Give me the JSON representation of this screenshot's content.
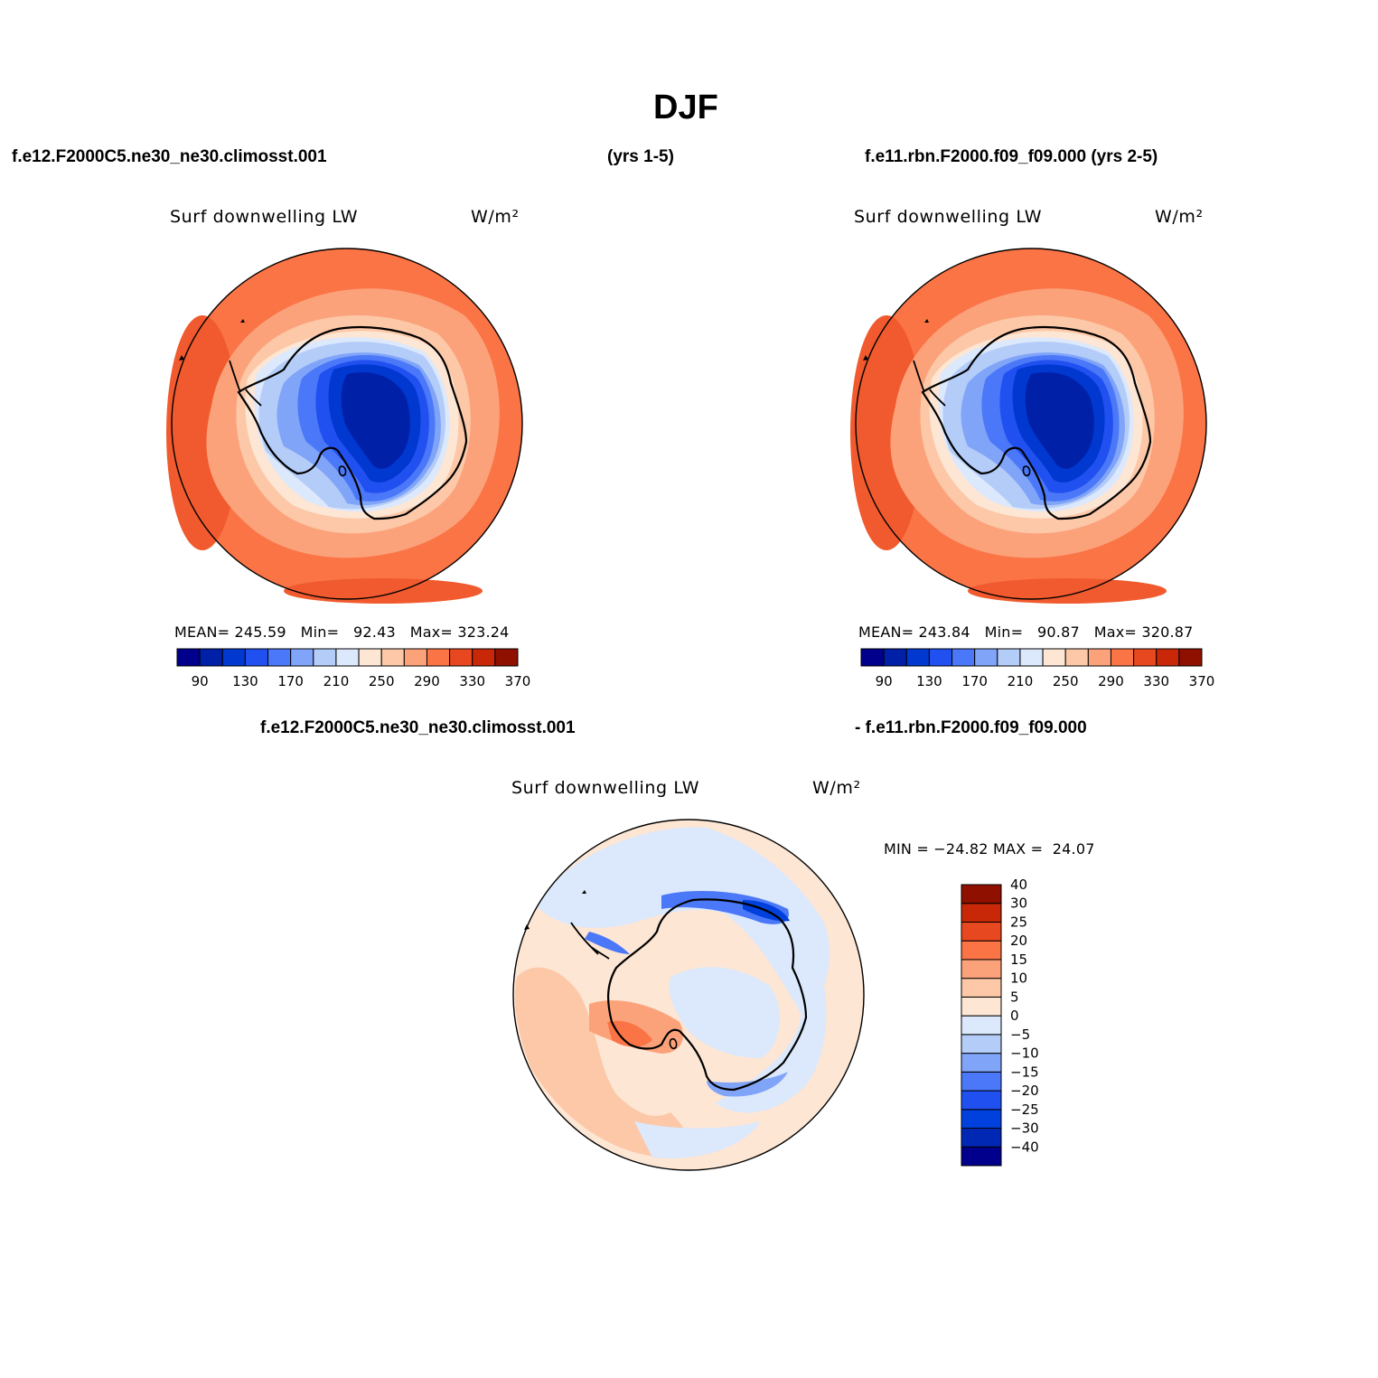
{
  "title": "DJF",
  "headers": {
    "case1": "f.e12.F2000C5.ne30_ne30.climosst.001",
    "case1_years": "(yrs 1-5)",
    "case2": "f.e11.rbn.F2000.f09_f09.000 (yrs 2-5)",
    "diff_left": "f.e12.F2000C5.ne30_ne30.climosst.001",
    "diff_right": "- f.e11.rbn.F2000.f09_f09.000"
  },
  "panels": [
    {
      "variable": "Surf downwelling LW",
      "units": "W/m²",
      "stats": {
        "mean_label": "MEAN=",
        "mean": "245.59",
        "min_label": "Min=",
        "min": "92.43",
        "max_label": "Max=",
        "max": "323.24"
      }
    },
    {
      "variable": "Surf downwelling LW",
      "units": "W/m²",
      "stats": {
        "mean_label": "MEAN=",
        "mean": "243.84",
        "min_label": "Min=",
        "min": "90.87",
        "max_label": "Max=",
        "max": "320.87"
      }
    },
    {
      "variable": "Surf downwelling LW",
      "units": "W/m²",
      "stats": {
        "min_label": "MIN =",
        "min": "−24.82",
        "max_label": "MAX =",
        "max": "24.07"
      }
    }
  ],
  "colorbar_abs": {
    "colors": [
      "#00008c",
      "#0020a8",
      "#0038d0",
      "#2050f0",
      "#4a78f8",
      "#80a4f8",
      "#b4ccf8",
      "#dce8fc",
      "#fde6d4",
      "#fcc8a8",
      "#fca27a",
      "#fa7446",
      "#e84820",
      "#c82808",
      "#901000"
    ],
    "tick_labels": [
      "90",
      "130",
      "170",
      "210",
      "250",
      "290",
      "330",
      "370"
    ]
  },
  "colorbar_diff": {
    "colors": [
      "#00008c",
      "#0028b4",
      "#0040dc",
      "#2050f0",
      "#4a78f8",
      "#80a4f8",
      "#b4ccf8",
      "#dce8fc",
      "#fde6d4",
      "#fcc8a8",
      "#fca27a",
      "#fa7446",
      "#e84820",
      "#c82808",
      "#901000"
    ],
    "tick_labels": [
      "−40",
      "−30",
      "−25",
      "−20",
      "−15",
      "−10",
      "−5",
      "0",
      "5",
      "10",
      "15",
      "20",
      "25",
      "30",
      "40"
    ]
  }
}
